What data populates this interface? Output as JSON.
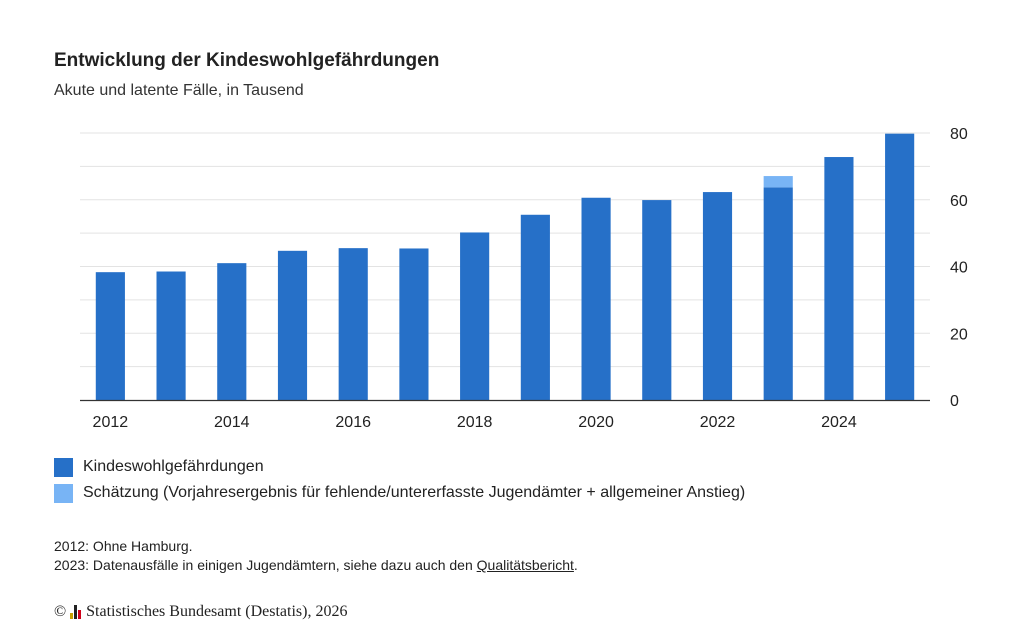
{
  "header": {
    "title": "Entwicklung der Kindeswohlgefährdungen",
    "subtitle": "Akute und latente Fälle, in Tausend"
  },
  "colors": {
    "primary": "#2670c8",
    "estimate": "#78b4f5",
    "grid": "#e3e3e3",
    "axis": "#333333"
  },
  "chart_data": {
    "type": "bar",
    "stacked": true,
    "x": [
      2012,
      2013,
      2014,
      2015,
      2016,
      2017,
      2018,
      2019,
      2020,
      2021,
      2022,
      2023,
      2024,
      2025
    ],
    "x_tick_labels": [
      "2012",
      "2014",
      "2016",
      "2018",
      "2020",
      "2022",
      "2024"
    ],
    "series": [
      {
        "name": "Kindeswohlgefährdungen",
        "color": "#2670c8",
        "values": [
          38.3,
          38.5,
          41.0,
          44.7,
          45.5,
          45.4,
          50.2,
          55.5,
          60.6,
          59.9,
          62.3,
          63.7,
          72.8,
          79.8
        ]
      },
      {
        "name": "Schätzung (Vorjahresergebnis für fehlende/untererfasste Jugendämter + allgemeiner Anstieg)",
        "color": "#78b4f5",
        "values": [
          0,
          0,
          0,
          0,
          0,
          0,
          0,
          0,
          0,
          0,
          0,
          3.4,
          0,
          0
        ]
      }
    ],
    "ylim": [
      0,
      80
    ],
    "y_ticks": [
      "0",
      "20",
      "40",
      "60",
      "80"
    ],
    "y_axis_position": "right",
    "grid": true,
    "legend_position": "bottom-left"
  },
  "legend": {
    "items": [
      {
        "label": "Kindeswohlgefährdungen",
        "color": "#2670c8"
      },
      {
        "label": "Schätzung (Vorjahresergebnis für fehlende/untererfasste Jugendämter + allgemeiner Anstieg)",
        "color": "#78b4f5"
      }
    ]
  },
  "notes": {
    "line1": "2012: Ohne Hamburg.",
    "line2_prefix": "2023: Datenausfälle in einigen Jugendämtern, siehe dazu auch den ",
    "line2_link": "Qualitätsbericht",
    "line2_suffix": "."
  },
  "footer": {
    "copyright_symbol": "©",
    "source": "Statistisches Bundesamt (Destatis), 2026"
  }
}
